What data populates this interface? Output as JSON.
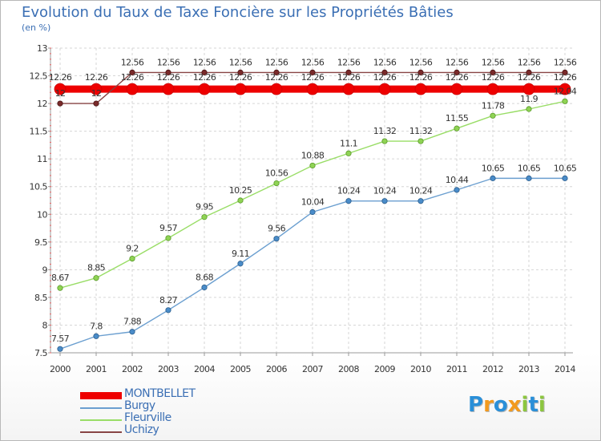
{
  "chart_data": {
    "type": "line",
    "title": "Evolution du Taux de Taxe Foncière sur les Propriétés Bâties",
    "ylabel": "(en %)",
    "categories": [
      "2000",
      "2001",
      "2002",
      "2003",
      "2004",
      "2005",
      "2006",
      "2007",
      "2008",
      "2009",
      "2010",
      "2011",
      "2012",
      "2013",
      "2014"
    ],
    "ylim": [
      7.5,
      13
    ],
    "yticks": [
      "7.5",
      "8",
      "8.5",
      "9",
      "9.5",
      "10",
      "10.5",
      "11",
      "11.5",
      "12",
      "12.5",
      "13"
    ],
    "series": [
      {
        "name": "MONTBELLET",
        "color": "#ee0000",
        "values": [
          12.26,
          12.26,
          12.26,
          12.26,
          12.26,
          12.26,
          12.26,
          12.26,
          12.26,
          12.26,
          12.26,
          12.26,
          12.26,
          12.26,
          12.26
        ],
        "labels": [
          "12.26",
          "12.26",
          "12.26",
          "12.26",
          "12.26",
          "12.26",
          "12.26",
          "12.26",
          "12.26",
          "12.26",
          "12.26",
          "12.26",
          "12.26",
          "12.26",
          "12.26"
        ]
      },
      {
        "name": "Burgy",
        "color": "#6b9fd0",
        "values": [
          7.57,
          7.8,
          7.88,
          8.27,
          8.68,
          9.11,
          9.56,
          10.04,
          10.24,
          10.24,
          10.24,
          10.44,
          10.65,
          10.65,
          10.65
        ],
        "labels": [
          "7.57",
          "7.8",
          "7.88",
          "8.27",
          "8.68",
          "9.11",
          "9.56",
          "10.04",
          "10.24",
          "10.24",
          "10.24",
          "10.44",
          "10.65",
          "10.65",
          "10.65"
        ]
      },
      {
        "name": "Fleurville",
        "color": "#99dd66",
        "values": [
          8.67,
          8.85,
          9.2,
          9.57,
          9.95,
          10.25,
          10.56,
          10.88,
          11.1,
          11.32,
          11.32,
          11.55,
          11.78,
          11.9,
          12.04
        ],
        "labels": [
          "8.67",
          "8.85",
          "9.2",
          "9.57",
          "9.95",
          "10.25",
          "10.56",
          "10.88",
          "11.1",
          "11.32",
          "11.32",
          "11.55",
          "11.78",
          "11.9",
          "12.04"
        ]
      },
      {
        "name": "Uchizy",
        "color": "#884444",
        "values": [
          12,
          12,
          12.56,
          12.56,
          12.56,
          12.56,
          12.56,
          12.56,
          12.56,
          12.56,
          12.56,
          12.56,
          12.56,
          12.56,
          12.56
        ],
        "labels": [
          "12",
          "12",
          "12.56",
          "12.56",
          "12.56",
          "12.56",
          "12.56",
          "12.56",
          "12.56",
          "12.56",
          "12.56",
          "12.56",
          "12.56",
          "12.56",
          "12.56"
        ]
      }
    ]
  },
  "logo": {
    "text": "Proxiti",
    "letters": [
      {
        "ch": "P",
        "color": "#2a8fd8"
      },
      {
        "ch": "r",
        "color": "#f29a1e"
      },
      {
        "ch": "o",
        "color": "#2a8fd8"
      },
      {
        "ch": "x",
        "color": "#f29a1e"
      },
      {
        "ch": "i",
        "color": "#8cc63f"
      },
      {
        "ch": "t",
        "color": "#2a8fd8"
      },
      {
        "ch": "i",
        "color": "#8cc63f"
      }
    ]
  }
}
